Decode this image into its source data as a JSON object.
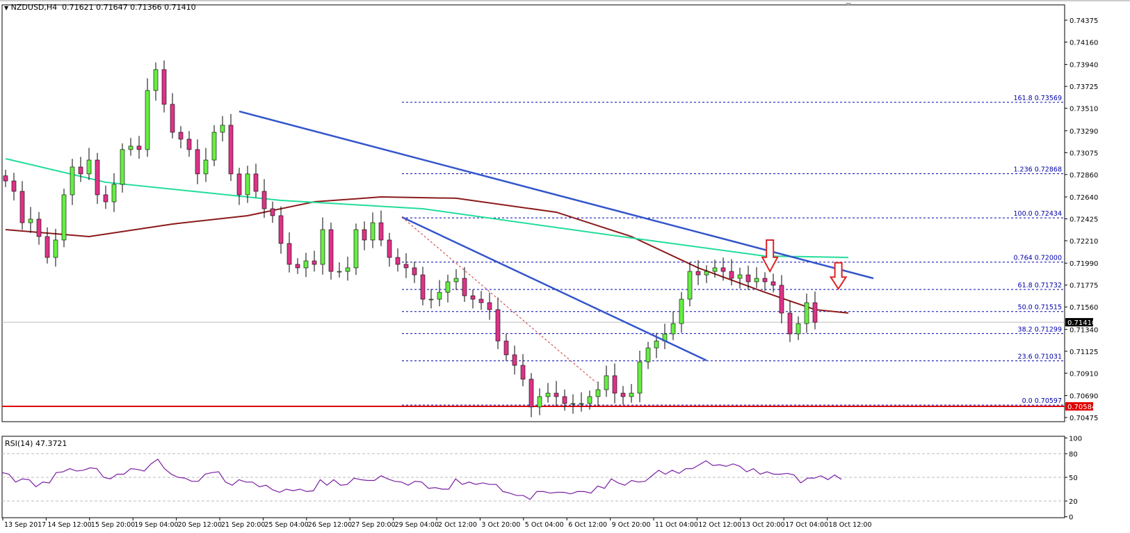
{
  "header": {
    "symbol_label": "NZDUSD,H4",
    "ohlc_text": "0.71621 0.71647 0.71366 0.71410"
  },
  "chart_data": [
    {
      "type": "candlestick",
      "symbol": "NZDUSD",
      "timeframe": "H4",
      "price_axis": {
        "range": [
          0.70475,
          0.74375
        ],
        "ticks": [
          "0.74375",
          "0.74160",
          "0.73940",
          "0.73725",
          "0.73510",
          "0.73290",
          "0.73075",
          "0.72860",
          "0.72640",
          "0.72425",
          "0.72210",
          "0.71990",
          "0.71775",
          "0.71560",
          "0.71340",
          "0.71125",
          "0.70910",
          "0.70690",
          "0.70475"
        ]
      },
      "time_axis": {
        "ticks": [
          "13 Sep 2017",
          "14 Sep 12:00",
          "15 Sep 20:00",
          "19 Sep 04:00",
          "20 Sep 12:00",
          "21 Sep 20:00",
          "25 Sep 04:00",
          "26 Sep 12:00",
          "27 Sep 20:00",
          "29 Sep 04:00",
          "2 Oct 12:00",
          "3 Oct 20:00",
          "5 Oct 04:00",
          "6 Oct 12:00",
          "9 Oct 20:00",
          "11 Oct 04:00",
          "12 Oct 12:00",
          "13 Oct 20:00",
          "17 Oct 04:00",
          "18 Oct 12:00"
        ]
      },
      "closes": [
        0.72797,
        0.72695,
        0.72387,
        0.72422,
        0.72251,
        0.72046,
        0.72217,
        0.72661,
        0.72934,
        0.72866,
        0.73002,
        0.72661,
        0.72592,
        0.72763,
        0.73105,
        0.73139,
        0.73105,
        0.73685,
        0.7389,
        0.73549,
        0.73275,
        0.73207,
        0.73105,
        0.72866,
        0.73002,
        0.73275,
        0.73344,
        0.72866,
        0.72661,
        0.72866,
        0.72695,
        0.72524,
        0.72456,
        0.72183,
        0.71978,
        0.71944,
        0.72012,
        0.71978,
        0.72319,
        0.71909,
        0.71909,
        0.71944,
        0.72319,
        0.72217,
        0.72387,
        0.72217,
        0.72046,
        0.71978,
        0.71944,
        0.71875,
        0.71636,
        0.71636,
        0.71704,
        0.71807,
        0.71841,
        0.7167,
        0.71636,
        0.71602,
        0.71534,
        0.71226,
        0.7109,
        0.70987,
        0.70851,
        0.70578,
        0.7068,
        0.70714,
        0.7068,
        0.70612,
        0.70612,
        0.70612,
        0.7068,
        0.70748,
        0.70885,
        0.70714,
        0.7068,
        0.70714,
        0.71021,
        0.71158,
        0.71226,
        0.71295,
        0.71397,
        0.71636,
        0.71909,
        0.71875,
        0.71909,
        0.71944,
        0.71909,
        0.71841,
        0.71875,
        0.71807,
        0.71841,
        0.71807,
        0.71773,
        0.715,
        0.71295,
        0.71397,
        0.71602,
        0.7141
      ],
      "current_price": {
        "value": 0.7141,
        "label": "0.71410"
      },
      "support_line": {
        "value": 0.70584,
        "label": "0.70584",
        "color": "#dd0000"
      },
      "moving_averages": [
        {
          "color": "#8b1a1a",
          "points": [
            [
              0,
              0.72319
            ],
            [
              10,
              0.72251
            ],
            [
              20,
              0.72374
            ],
            [
              29,
              0.72456
            ],
            [
              37,
              0.72592
            ],
            [
              45,
              0.7264
            ],
            [
              54,
              0.72627
            ],
            [
              66,
              0.7249
            ],
            [
              75,
              0.72251
            ],
            [
              83,
              0.71944
            ],
            [
              91,
              0.71704
            ],
            [
              97,
              0.71534
            ],
            [
              101,
              0.715
            ]
          ]
        },
        {
          "color": "#22dd99",
          "points": [
            [
              0,
              0.73016
            ],
            [
              12,
              0.72784
            ],
            [
              33,
              0.72606
            ],
            [
              50,
              0.72524
            ],
            [
              75,
              0.72237
            ],
            [
              91,
              0.7206
            ],
            [
              101,
              0.72046
            ]
          ]
        }
      ],
      "trendlines": [
        {
          "color": "#3355cc",
          "from": [
            28,
            0.7348
          ],
          "to": [
            104,
            0.71841
          ]
        },
        {
          "color": "#3355cc",
          "from": [
            47.5,
            0.72442
          ],
          "to": [
            84,
            0.71035
          ]
        },
        {
          "color": "#cc3333",
          "dashed": true,
          "from": [
            47.5,
            0.72442
          ],
          "to": [
            70.8,
            0.70817
          ]
        }
      ],
      "fibonacci": {
        "color": "#0000aa",
        "start_index": 47.5,
        "levels": [
          {
            "label": "161.8 0.73569",
            "value": 0.73569
          },
          {
            "label": "1.236 0.72868",
            "value": 0.72868
          },
          {
            "label": "100.0 0.72434",
            "value": 0.72434
          },
          {
            "label": "0.764 0.72000",
            "value": 0.72
          },
          {
            "label": "61.8 0.71732",
            "value": 0.71732
          },
          {
            "label": "50.0 0.71515",
            "value": 0.71515
          },
          {
            "label": "38.2 0.71299",
            "value": 0.71299
          },
          {
            "label": "23.6 0.71031",
            "value": 0.71031
          },
          {
            "label": "0.0 0.70597",
            "value": 0.70597
          }
        ]
      },
      "arrows": [
        {
          "index": 91.6,
          "price_top": 0.72217,
          "price_bottom": 0.71909,
          "color": "#dd2222"
        },
        {
          "index": 99.8,
          "price_top": 0.71994,
          "price_bottom": 0.71738,
          "color": "#dd2222"
        }
      ],
      "colors": {
        "bull": "#66ee44",
        "bear": "#dd3388"
      }
    },
    {
      "type": "line",
      "indicator_label": "RSI(14) 47.3721",
      "range": [
        0,
        100
      ],
      "ticks": [
        "100",
        "80",
        "50",
        "20",
        "0"
      ],
      "levels": [
        80,
        50,
        20
      ],
      "color": "#7a1fa2",
      "values": [
        56,
        54,
        44,
        48,
        47,
        38,
        44,
        43,
        56,
        57,
        61,
        58,
        59,
        62,
        61,
        50,
        48,
        54,
        54,
        61,
        60,
        58,
        67,
        73,
        61,
        54,
        50,
        49,
        45,
        45,
        54,
        56,
        57,
        44,
        40,
        47,
        44,
        44,
        38,
        40,
        34,
        31,
        35,
        33,
        35,
        32,
        33,
        47,
        40,
        47,
        40,
        41,
        49,
        47,
        46,
        46,
        52,
        48,
        45,
        44,
        40,
        45,
        44,
        36,
        37,
        35,
        35,
        48,
        41,
        44,
        41,
        43,
        41,
        41,
        32,
        30,
        27,
        27,
        22,
        32,
        32,
        30,
        31,
        31,
        29,
        32,
        32,
        30,
        39,
        36,
        48,
        43,
        40,
        46,
        44,
        45,
        52,
        59,
        54,
        59,
        55,
        61,
        61,
        66,
        71,
        65,
        66,
        64,
        67,
        64,
        57,
        61,
        54,
        57,
        54,
        54,
        55,
        53,
        43,
        49,
        49,
        52,
        47,
        53,
        47.37
      ]
    }
  ]
}
